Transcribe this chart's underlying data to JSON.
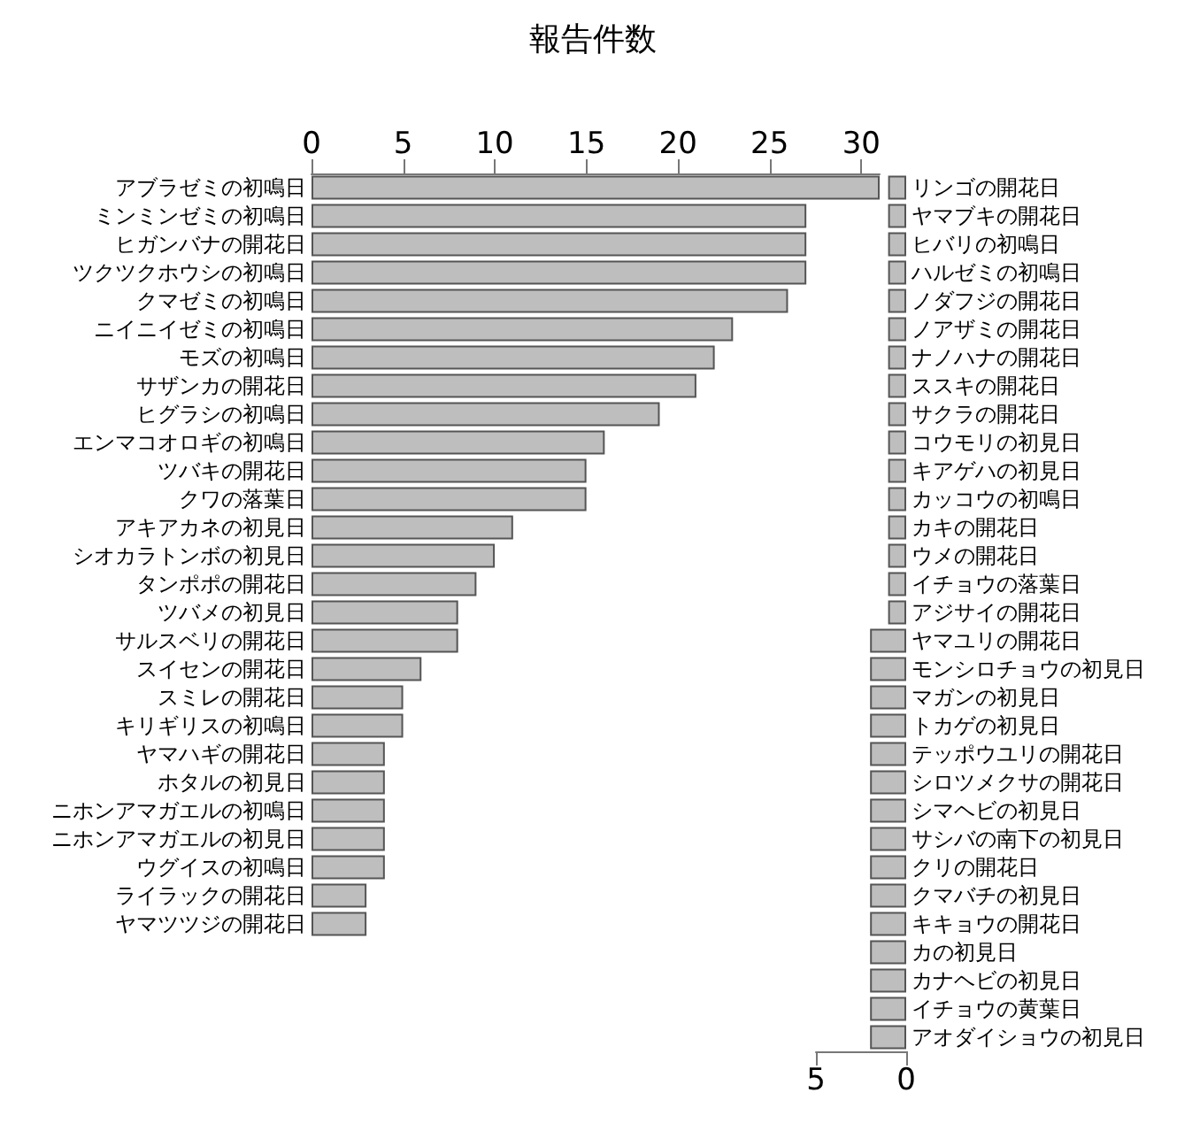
{
  "chart_data": [
    {
      "type": "bar",
      "orientation": "horizontal",
      "title": "報告件数",
      "color": "#bebebe",
      "xlim": [
        0,
        31
      ],
      "xticks": [
        0,
        5,
        10,
        15,
        20,
        25,
        30
      ],
      "categories": [
        "アブラゼミの初鳴日",
        "ミンミンゼミの初鳴日",
        "ヒガンバナの開花日",
        "ツクツクホウシの初鳴日",
        "クマゼミの初鳴日",
        "ニイニイゼミの初鳴日",
        "モズの初鳴日",
        "サザンカの開花日",
        "ヒグラシの初鳴日",
        "エンマコオロギの初鳴日",
        "ツバキの開花日",
        "クワの落葉日",
        "アキアカネの初見日",
        "シオカラトンボの初見日",
        "タンポポの開花日",
        "ツバメの初見日",
        "サルスベリの開花日",
        "スイセンの開花日",
        "スミレの開花日",
        "キリギリスの初鳴日",
        "ヤマハギの開花日",
        "ホタルの初見日",
        "ニホンアマガエルの初鳴日",
        "ニホンアマガエルの初見日",
        "ウグイスの初鳴日",
        "ライラックの開花日",
        "ヤマツツジの開花日"
      ],
      "values": [
        31,
        27,
        27,
        27,
        26,
        23,
        22,
        21,
        19,
        16,
        15,
        15,
        11,
        10,
        9,
        8,
        8,
        6,
        5,
        5,
        4,
        4,
        4,
        4,
        4,
        3,
        3
      ]
    },
    {
      "type": "bar",
      "orientation": "horizontal",
      "color": "#bebebe",
      "xlim": [
        5,
        0
      ],
      "xticks": [
        5,
        0
      ],
      "categories": [
        "リンゴの開花日",
        "ヤマブキの開花日",
        "ヒバリの初鳴日",
        "ハルゼミの初鳴日",
        "ノダフジの開花日",
        "ノアザミの開花日",
        "ナノハナの開花日",
        "ススキの開花日",
        "サクラの開花日",
        "コウモリの初見日",
        "キアゲハの初見日",
        "カッコウの初鳴日",
        "カキの開花日",
        "ウメの開花日",
        "イチョウの落葉日",
        "アジサイの開花日",
        "ヤマユリの開花日",
        "モンシロチョウの初見日",
        "マガンの初見日",
        "トカゲの初見日",
        "テッポウユリの開花日",
        "シロツメクサの開花日",
        "シマヘビの初見日",
        "サシバの南下の初見日",
        "クリの開花日",
        "クマバチの初見日",
        "キキョウの開花日",
        "カの初見日",
        "カナヘビの初見日",
        "イチョウの黄葉日",
        "アオダイショウの初見日"
      ],
      "values": [
        1,
        1,
        1,
        1,
        1,
        1,
        1,
        1,
        1,
        1,
        1,
        1,
        1,
        1,
        1,
        1,
        2,
        2,
        2,
        2,
        2,
        2,
        2,
        2,
        2,
        2,
        2,
        2,
        2,
        2,
        2
      ]
    }
  ]
}
